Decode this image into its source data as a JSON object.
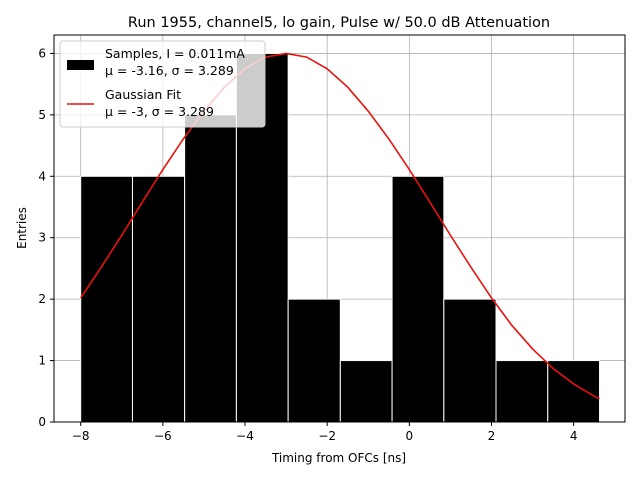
{
  "chart_data": {
    "type": "bar",
    "title": "Run 1955, channel5, lo gain, Pulse w/ 50.0 dB Attenuation",
    "xlabel": "Timing from OFCs [ns]",
    "ylabel": "Entries",
    "xlim": [
      -8.65,
      5.25
    ],
    "ylim": [
      0,
      6.3
    ],
    "xticks": [
      -8,
      -6,
      -4,
      -2,
      0,
      2,
      4
    ],
    "yticks": [
      0,
      1,
      2,
      3,
      4,
      5,
      6
    ],
    "grid": true,
    "legend_position": "upper-left",
    "histogram": {
      "name": "Samples, I = 0.011mA",
      "stats": "μ = -3.16, σ = 3.289",
      "color": "#000000",
      "edgecolor": "#ffffff",
      "bin_edges": [
        -8.0,
        -6.74,
        -5.47,
        -4.21,
        -2.95,
        -1.68,
        -0.42,
        0.84,
        2.11,
        3.37,
        4.63
      ],
      "counts": [
        4,
        4,
        5,
        6,
        2,
        1,
        4,
        2,
        1,
        1
      ]
    },
    "fit": {
      "name": "Gaussian Fit",
      "stats": "μ = -3, σ = 3.289",
      "color": "#e8120c",
      "x": [
        -8.0,
        -7.5,
        -7.0,
        -6.5,
        -6.0,
        -5.5,
        -5.0,
        -4.5,
        -4.0,
        -3.5,
        -3.0,
        -2.5,
        -2.0,
        -1.5,
        -1.0,
        -0.5,
        0.0,
        0.5,
        1.0,
        1.5,
        2.0,
        2.5,
        3.0,
        3.5,
        4.0,
        4.5,
        4.63
      ],
      "y": [
        2.02,
        2.52,
        3.04,
        3.58,
        4.11,
        4.61,
        5.06,
        5.45,
        5.75,
        5.94,
        6.0,
        5.94,
        5.75,
        5.45,
        5.06,
        4.61,
        4.11,
        3.58,
        3.04,
        2.52,
        2.02,
        1.57,
        1.19,
        0.87,
        0.62,
        0.42,
        0.38
      ]
    }
  }
}
